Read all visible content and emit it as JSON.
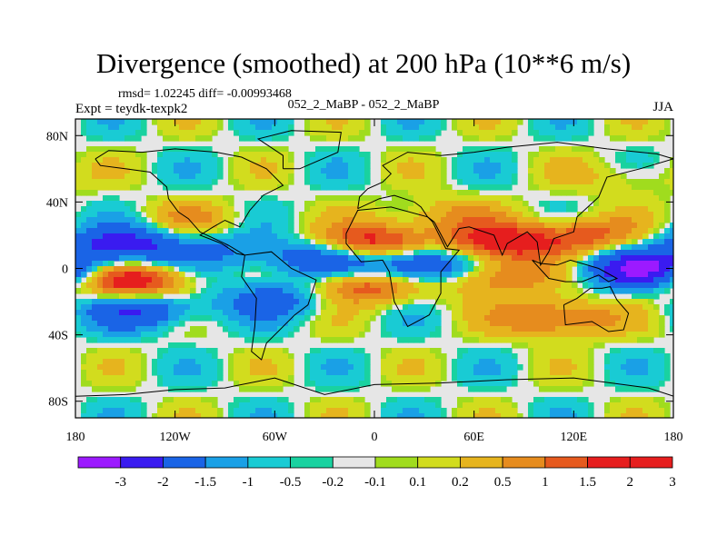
{
  "title": "Divergence (smoothed) at 200 hPa (10**6 m/s)",
  "rmsd_line": "rmsd= 1.02245 diff= -0.00993468",
  "expt_line": "Expt = teydk-texpk2",
  "center_line": "052_2_MaBP - 052_2_MaBP",
  "season": "JJA",
  "colors": {
    "frame": "#000000",
    "missing": "#e6e6e6",
    "palette": [
      "#9c1aff",
      "#3a1bf0",
      "#1a64e6",
      "#1aa0e6",
      "#19cbd4",
      "#19d2a0",
      "#e6e6e6",
      "#a0dc1e",
      "#d2dc1e",
      "#e6b41e",
      "#e68c1e",
      "#e65a1e",
      "#e61e1e",
      "#e61e1e"
    ]
  },
  "chart_data": {
    "type": "heatmap",
    "title": "Divergence (smoothed) at 200 hPa (10**6 m/s)",
    "variable": "divergence",
    "units": "10**6 m/s",
    "level": "200 hPa",
    "season": "JJA",
    "x_range": [
      -180,
      180
    ],
    "y_range": [
      -90,
      90
    ],
    "x_ticks": [
      {
        "value": -180,
        "label": "180"
      },
      {
        "value": -120,
        "label": "120W"
      },
      {
        "value": -60,
        "label": "60W"
      },
      {
        "value": 0,
        "label": "0"
      },
      {
        "value": 60,
        "label": "60E"
      },
      {
        "value": 120,
        "label": "120E"
      },
      {
        "value": 180,
        "label": "180"
      }
    ],
    "y_ticks": [
      {
        "value": 80,
        "label": "80N"
      },
      {
        "value": 40,
        "label": "40N"
      },
      {
        "value": 0,
        "label": "0"
      },
      {
        "value": -40,
        "label": "40S"
      },
      {
        "value": -80,
        "label": "80S"
      }
    ],
    "contour_levels": [
      -3,
      -2,
      -1.5,
      -1,
      -0.5,
      -0.2,
      -0.1,
      0.1,
      0.2,
      0.5,
      1,
      1.5,
      2,
      3
    ],
    "colorbar_labels": [
      "-3",
      "-2",
      "-1.5",
      "-1",
      "-0.5",
      "-0.2",
      "-0.1",
      "0.1",
      "0.2",
      "0.5",
      "1",
      "1.5",
      "2",
      "3"
    ],
    "field_features": [
      {
        "lon": -150,
        "lat": 14,
        "value": -2.6
      },
      {
        "lon": -145,
        "lat": -8,
        "value": 2.6
      },
      {
        "lon": -140,
        "lat": -25,
        "value": -2.0
      },
      {
        "lon": -110,
        "lat": 30,
        "value": 0.8
      },
      {
        "lon": -85,
        "lat": 10,
        "value": -1.0
      },
      {
        "lon": -60,
        "lat": -18,
        "value": -1.5
      },
      {
        "lon": -30,
        "lat": 5,
        "value": -1.8
      },
      {
        "lon": -8,
        "lat": -10,
        "value": 2.2
      },
      {
        "lon": 0,
        "lat": 15,
        "value": 2.6
      },
      {
        "lon": 28,
        "lat": 2,
        "value": -3.0
      },
      {
        "lon": 40,
        "lat": 32,
        "value": 1.0
      },
      {
        "lon": 70,
        "lat": -5,
        "value": 1.8
      },
      {
        "lon": 75,
        "lat": 15,
        "value": 2.4
      },
      {
        "lon": 110,
        "lat": -30,
        "value": 2.0
      },
      {
        "lon": 125,
        "lat": 20,
        "value": 1.8
      },
      {
        "lon": 160,
        "lat": 0,
        "value": -3.0
      },
      {
        "lon": 150,
        "lat": 55,
        "value": 0.6
      }
    ]
  }
}
